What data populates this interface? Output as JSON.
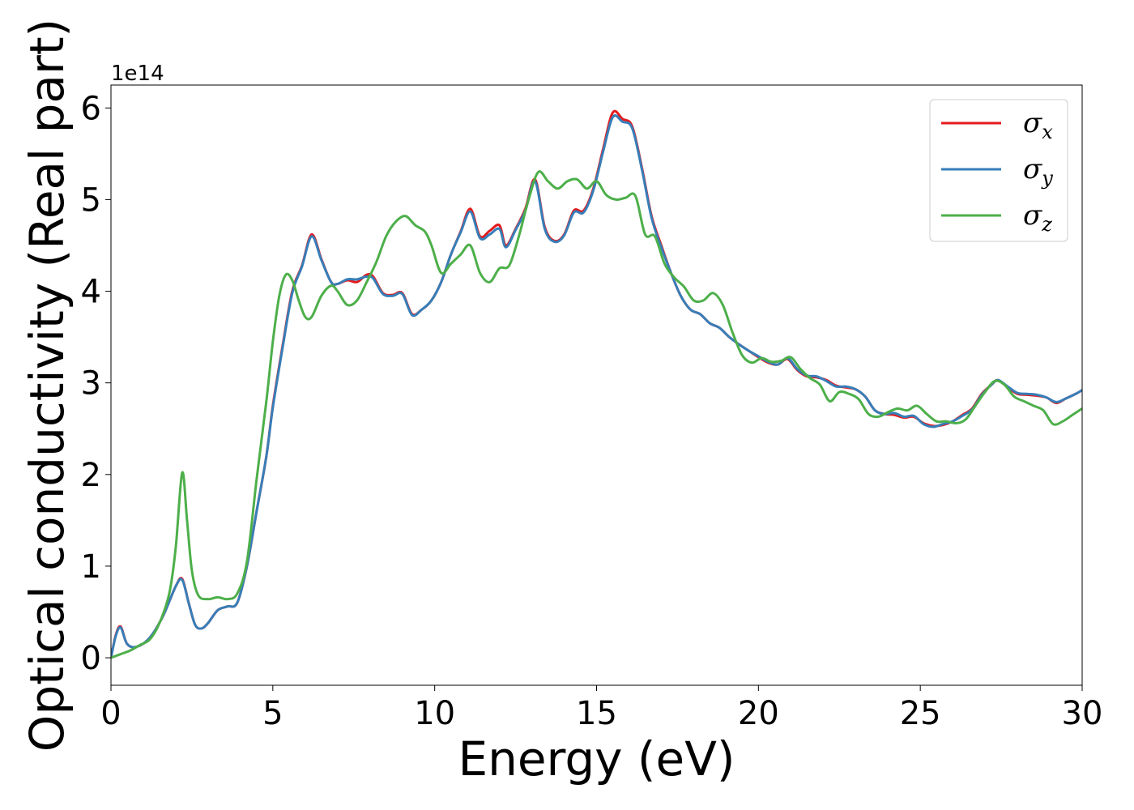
{
  "chart_data": {
    "type": "line",
    "xlabel": "Energy (eV)",
    "ylabel": "Optical conductivity (Real part)",
    "y_offset_label": "1e14",
    "xlim": [
      0,
      30
    ],
    "ylim": [
      -0.3,
      6.25
    ],
    "x_ticks": [
      "0",
      "5",
      "10",
      "15",
      "20",
      "25",
      "30"
    ],
    "y_ticks": [
      "0",
      "1",
      "2",
      "3",
      "4",
      "5",
      "6"
    ],
    "grid": false,
    "legend_position": "top-right",
    "series": [
      {
        "name": "σx",
        "symbol": "σ",
        "subscript": "x",
        "color": "#e41a1c",
        "x": [
          0,
          0.15,
          0.3,
          0.5,
          0.8,
          1.2,
          1.6,
          2.0,
          2.2,
          2.4,
          2.6,
          2.8,
          3.0,
          3.3,
          3.6,
          3.9,
          4.2,
          4.5,
          4.8,
          5.0,
          5.3,
          5.6,
          5.9,
          6.2,
          6.5,
          6.8,
          7.0,
          7.3,
          7.6,
          7.9,
          8.1,
          8.4,
          8.7,
          9.0,
          9.3,
          9.6,
          9.9,
          10.2,
          10.5,
          10.8,
          11.1,
          11.4,
          11.7,
          12.0,
          12.2,
          12.5,
          12.8,
          13.1,
          13.4,
          13.7,
          14.0,
          14.3,
          14.6,
          14.9,
          15.2,
          15.5,
          15.8,
          16.1,
          16.4,
          16.7,
          17.0,
          17.3,
          17.6,
          17.9,
          18.2,
          18.5,
          18.8,
          19.1,
          19.4,
          19.7,
          20.0,
          20.3,
          20.6,
          20.9,
          21.2,
          21.5,
          21.8,
          22.1,
          22.4,
          22.7,
          23.0,
          23.3,
          23.6,
          23.9,
          24.2,
          24.5,
          24.8,
          25.1,
          25.4,
          25.7,
          26.0,
          26.3,
          26.6,
          26.9,
          27.2,
          27.4,
          27.7,
          28.0,
          28.3,
          28.6,
          28.9,
          29.2,
          29.5,
          29.8,
          30.0
        ],
        "y": [
          0.0,
          0.25,
          0.34,
          0.15,
          0.12,
          0.22,
          0.45,
          0.78,
          0.86,
          0.6,
          0.36,
          0.32,
          0.38,
          0.52,
          0.56,
          0.6,
          1.0,
          1.6,
          2.2,
          2.75,
          3.4,
          4.0,
          4.28,
          4.62,
          4.35,
          4.1,
          4.08,
          4.12,
          4.1,
          4.18,
          4.16,
          3.98,
          3.96,
          3.98,
          3.75,
          3.8,
          3.9,
          4.1,
          4.4,
          4.65,
          4.9,
          4.6,
          4.66,
          4.72,
          4.5,
          4.68,
          4.9,
          5.22,
          4.7,
          4.55,
          4.62,
          4.88,
          4.88,
          5.12,
          5.55,
          5.95,
          5.88,
          5.8,
          5.35,
          4.82,
          4.5,
          4.2,
          3.95,
          3.8,
          3.75,
          3.65,
          3.6,
          3.5,
          3.42,
          3.35,
          3.28,
          3.22,
          3.2,
          3.26,
          3.14,
          3.07,
          3.06,
          3.03,
          2.97,
          2.95,
          2.93,
          2.85,
          2.7,
          2.66,
          2.65,
          2.62,
          2.63,
          2.56,
          2.53,
          2.54,
          2.58,
          2.65,
          2.72,
          2.88,
          2.98,
          3.03,
          2.95,
          2.88,
          2.87,
          2.86,
          2.84,
          2.78,
          2.83,
          2.88,
          2.92
        ]
      },
      {
        "name": "σy",
        "symbol": "σ",
        "subscript": "y",
        "color": "#377eb8",
        "x": [
          0,
          0.15,
          0.3,
          0.5,
          0.8,
          1.2,
          1.6,
          2.0,
          2.2,
          2.4,
          2.6,
          2.8,
          3.0,
          3.3,
          3.6,
          3.9,
          4.2,
          4.5,
          4.8,
          5.0,
          5.3,
          5.6,
          5.9,
          6.2,
          6.5,
          6.8,
          7.0,
          7.3,
          7.6,
          7.9,
          8.1,
          8.4,
          8.7,
          9.0,
          9.3,
          9.6,
          9.9,
          10.2,
          10.5,
          10.8,
          11.1,
          11.4,
          11.7,
          12.0,
          12.2,
          12.5,
          12.8,
          13.1,
          13.4,
          13.7,
          14.0,
          14.3,
          14.6,
          14.9,
          15.2,
          15.5,
          15.8,
          16.1,
          16.4,
          16.7,
          17.0,
          17.3,
          17.6,
          17.9,
          18.2,
          18.5,
          18.8,
          19.1,
          19.4,
          19.7,
          20.0,
          20.3,
          20.6,
          20.9,
          21.2,
          21.5,
          21.8,
          22.1,
          22.4,
          22.7,
          23.0,
          23.3,
          23.6,
          23.9,
          24.2,
          24.5,
          24.8,
          25.1,
          25.4,
          25.7,
          26.0,
          26.3,
          26.6,
          26.9,
          27.2,
          27.4,
          27.7,
          28.0,
          28.3,
          28.6,
          28.9,
          29.2,
          29.5,
          29.8,
          30.0
        ],
        "y": [
          0.0,
          0.24,
          0.33,
          0.15,
          0.12,
          0.22,
          0.45,
          0.78,
          0.85,
          0.6,
          0.36,
          0.32,
          0.38,
          0.52,
          0.56,
          0.6,
          1.0,
          1.6,
          2.2,
          2.73,
          3.38,
          3.98,
          4.27,
          4.6,
          4.34,
          4.1,
          4.08,
          4.13,
          4.13,
          4.16,
          4.14,
          3.97,
          3.95,
          3.97,
          3.74,
          3.8,
          3.9,
          4.1,
          4.4,
          4.64,
          4.87,
          4.58,
          4.62,
          4.68,
          4.48,
          4.67,
          4.88,
          5.2,
          4.68,
          4.54,
          4.61,
          4.86,
          4.86,
          5.1,
          5.52,
          5.9,
          5.85,
          5.78,
          5.33,
          4.8,
          4.48,
          4.2,
          3.95,
          3.8,
          3.75,
          3.65,
          3.6,
          3.5,
          3.42,
          3.35,
          3.29,
          3.23,
          3.2,
          3.27,
          3.15,
          3.08,
          3.07,
          3.02,
          2.96,
          2.96,
          2.93,
          2.85,
          2.7,
          2.66,
          2.67,
          2.63,
          2.64,
          2.55,
          2.52,
          2.55,
          2.58,
          2.64,
          2.71,
          2.87,
          2.98,
          3.03,
          2.96,
          2.89,
          2.88,
          2.87,
          2.84,
          2.79,
          2.83,
          2.88,
          2.92
        ]
      },
      {
        "name": "σz",
        "symbol": "σ",
        "subscript": "z",
        "color": "#4daf4a",
        "x": [
          0,
          0.3,
          0.6,
          0.9,
          1.2,
          1.5,
          1.8,
          2.0,
          2.2,
          2.35,
          2.5,
          2.7,
          3.0,
          3.3,
          3.6,
          3.9,
          4.2,
          4.5,
          4.8,
          5.0,
          5.2,
          5.4,
          5.6,
          5.8,
          6.0,
          6.2,
          6.5,
          6.8,
          7.0,
          7.3,
          7.6,
          7.9,
          8.2,
          8.5,
          8.8,
          9.1,
          9.4,
          9.7,
          9.9,
          10.2,
          10.5,
          10.8,
          11.1,
          11.4,
          11.7,
          12.0,
          12.3,
          12.6,
          12.9,
          13.2,
          13.5,
          13.8,
          14.1,
          14.4,
          14.7,
          15.0,
          15.3,
          15.6,
          15.9,
          16.2,
          16.5,
          16.8,
          17.1,
          17.4,
          17.7,
          18.0,
          18.3,
          18.6,
          18.9,
          19.2,
          19.5,
          19.8,
          20.1,
          20.4,
          20.7,
          21.0,
          21.3,
          21.6,
          21.9,
          22.2,
          22.5,
          22.8,
          23.1,
          23.4,
          23.7,
          24.0,
          24.3,
          24.6,
          24.9,
          25.2,
          25.5,
          25.8,
          26.1,
          26.4,
          26.7,
          27.0,
          27.3,
          27.6,
          27.9,
          28.2,
          28.5,
          28.8,
          29.1,
          29.4,
          29.7,
          30.0
        ],
        "y": [
          0.0,
          0.04,
          0.08,
          0.14,
          0.2,
          0.38,
          0.7,
          1.2,
          2.02,
          1.5,
          0.95,
          0.68,
          0.64,
          0.66,
          0.64,
          0.7,
          1.05,
          1.95,
          2.8,
          3.45,
          3.95,
          4.18,
          4.12,
          3.9,
          3.72,
          3.72,
          3.95,
          4.06,
          4.0,
          3.85,
          3.9,
          4.1,
          4.32,
          4.6,
          4.76,
          4.82,
          4.72,
          4.65,
          4.5,
          4.2,
          4.3,
          4.4,
          4.5,
          4.2,
          4.1,
          4.25,
          4.28,
          4.6,
          5.0,
          5.3,
          5.2,
          5.12,
          5.2,
          5.22,
          5.12,
          5.2,
          5.05,
          5.0,
          5.02,
          5.04,
          4.62,
          4.6,
          4.3,
          4.15,
          4.05,
          3.9,
          3.9,
          3.98,
          3.85,
          3.55,
          3.3,
          3.22,
          3.27,
          3.23,
          3.24,
          3.28,
          3.15,
          3.05,
          2.98,
          2.8,
          2.9,
          2.88,
          2.82,
          2.66,
          2.63,
          2.68,
          2.72,
          2.7,
          2.75,
          2.66,
          2.58,
          2.58,
          2.56,
          2.6,
          2.75,
          2.9,
          3.02,
          2.98,
          2.85,
          2.8,
          2.75,
          2.7,
          2.55,
          2.58,
          2.65,
          2.72
        ]
      }
    ]
  }
}
